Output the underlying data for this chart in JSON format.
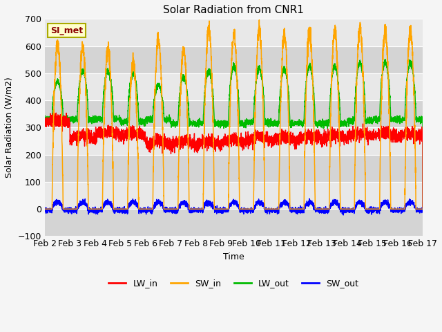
{
  "title": "Solar Radiation from CNR1",
  "xlabel": "Time",
  "ylabel": "Solar Radiation (W/m2)",
  "ylim": [
    -100,
    700
  ],
  "xlim": [
    0,
    15
  ],
  "x_tick_labels": [
    "Feb 2",
    "Feb 3",
    "Feb 4",
    "Feb 5",
    "Feb 6",
    "Feb 7",
    "Feb 8",
    "Feb 9",
    "Feb 10",
    "Feb 11",
    "Feb 12",
    "Feb 13",
    "Feb 14",
    "Feb 15",
    "Feb 16",
    "Feb 17"
  ],
  "x_tick_positions": [
    0,
    1,
    2,
    3,
    4,
    5,
    6,
    7,
    8,
    9,
    10,
    11,
    12,
    13,
    14,
    15
  ],
  "legend_labels": [
    "LW_in",
    "SW_in",
    "LW_out",
    "SW_out"
  ],
  "colors": {
    "LW_in": "#ff0000",
    "SW_in": "#ffa500",
    "LW_out": "#00bb00",
    "SW_out": "#0000ff"
  },
  "annotation_text": "SI_met",
  "annotation_color": "#8b0000",
  "annotation_bg": "#ffffcc",
  "plot_bg": "#e8e8e8",
  "fig_bg": "#f5f5f5",
  "band_color": "#d8d8d8",
  "title_fontsize": 11,
  "SW_peaks": [
    610,
    595,
    585,
    545,
    625,
    585,
    665,
    645,
    660,
    645,
    650,
    655,
    665,
    655,
    655
  ],
  "LW_in_base": [
    315,
    255,
    270,
    265,
    235,
    235,
    235,
    240,
    250,
    250,
    255,
    255,
    265,
    265,
    265
  ],
  "LW_out_base": [
    330,
    330,
    330,
    320,
    330,
    315,
    315,
    315,
    320,
    315,
    315,
    315,
    325,
    330,
    330
  ],
  "LW_out_peak": [
    470,
    510,
    510,
    500,
    455,
    485,
    510,
    525,
    520,
    515,
    525,
    525,
    540,
    540,
    540
  ]
}
